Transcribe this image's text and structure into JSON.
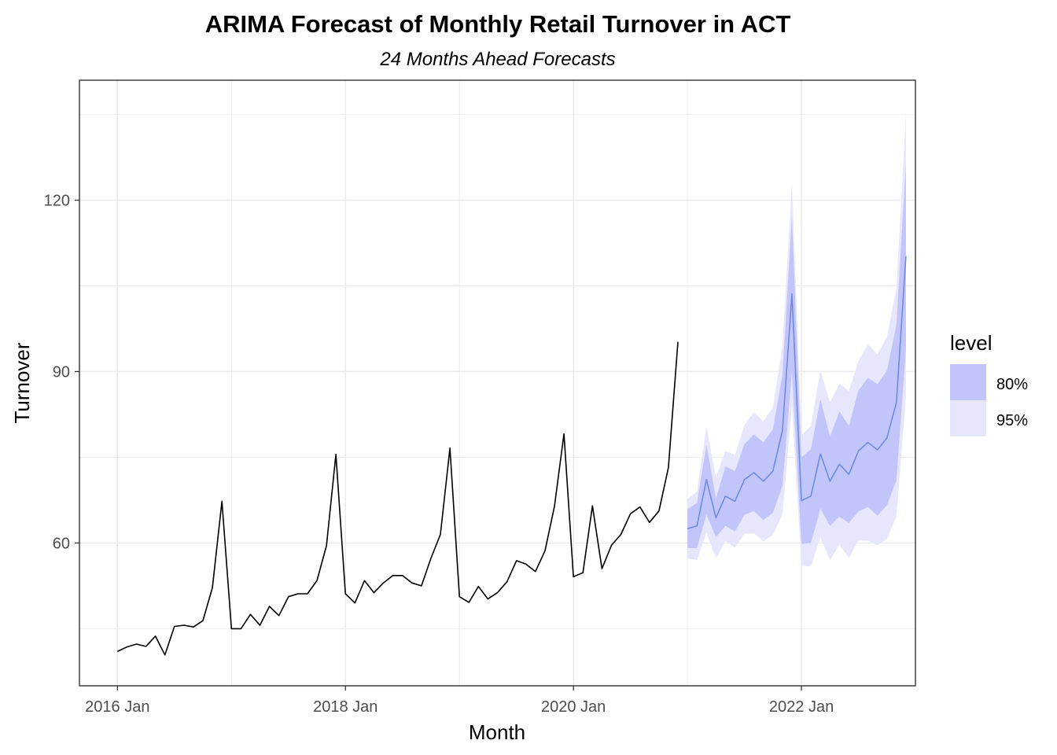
{
  "chart_data": {
    "type": "line",
    "title": "ARIMA Forecast of Monthly Retail Turnover in ACT",
    "subtitle": "24 Months Ahead Forecasts",
    "xlabel": "Month",
    "ylabel": "Turnover",
    "x_start": "2016 Jan",
    "x_ticks": [
      "2016 Jan",
      "2018 Jan",
      "2020 Jan",
      "2022 Jan"
    ],
    "y_ticks": [
      60,
      90,
      120
    ],
    "ylim": [
      35,
      141
    ],
    "xlim_months": [
      -4,
      84
    ],
    "grid": true,
    "legend": {
      "title": "level",
      "position": "right",
      "entries": [
        "80%",
        "95%"
      ]
    },
    "colors": {
      "history": "#000000",
      "forecast": "#6f8be0",
      "band80": "#c2c5fa",
      "band95": "#e6e6fc",
      "grid": "#ebebeb",
      "panel_border": "#333333"
    },
    "series": [
      {
        "name": "history",
        "start_month": "2016 Jan",
        "values": [
          41.0,
          41.8,
          42.3,
          41.9,
          43.7,
          40.4,
          45.4,
          45.6,
          45.3,
          46.4,
          52.2,
          67.3,
          45.0,
          45.0,
          47.5,
          45.6,
          48.9,
          47.3,
          50.6,
          51.1,
          51.1,
          53.4,
          59.5,
          75.5,
          51.1,
          49.5,
          53.4,
          51.3,
          53.0,
          54.3,
          54.3,
          53.0,
          52.5,
          57.3,
          61.5,
          76.6,
          50.6,
          49.6,
          52.4,
          50.2,
          51.3,
          53.2,
          56.9,
          56.3,
          55.0,
          58.6,
          66.4,
          79.1,
          54.1,
          54.8,
          66.5,
          55.5,
          59.6,
          61.5,
          65.1,
          66.3,
          63.6,
          65.6,
          73.2,
          95.2
        ]
      },
      {
        "name": "forecast",
        "start_month": "2021 Jan",
        "mean": [
          62.5,
          63.0,
          71.1,
          64.4,
          68.2,
          67.3,
          71.1,
          72.3,
          70.8,
          72.6,
          79.7,
          103.6,
          67.4,
          68.2,
          75.6,
          70.8,
          73.8,
          72.0,
          76.1,
          77.6,
          76.3,
          78.4,
          84.6,
          110.2
        ],
        "lo80": [
          59.1,
          59.1,
          65.0,
          61.0,
          63.0,
          62.0,
          64.9,
          65.6,
          64.0,
          65.3,
          70.0,
          90.0,
          59.8,
          60.0,
          66.0,
          63.0,
          64.6,
          63.5,
          65.5,
          66.3,
          64.8,
          66.6,
          71.0,
          94.0
        ],
        "hi80": [
          65.9,
          67.0,
          77.2,
          67.8,
          73.4,
          72.6,
          77.3,
          79.0,
          77.6,
          79.9,
          89.4,
          117.2,
          75.0,
          76.4,
          85.2,
          78.6,
          83.0,
          80.5,
          86.7,
          88.9,
          87.8,
          90.2,
          98.2,
          126.4
        ],
        "lo95": [
          57.3,
          57.0,
          61.8,
          57.3,
          60.3,
          59.2,
          61.6,
          61.7,
          60.3,
          61.4,
          65.0,
          84.0,
          56.0,
          55.9,
          61.0,
          57.0,
          59.7,
          57.4,
          60.4,
          60.4,
          59.6,
          60.7,
          64.6,
          85.4
        ],
        "hi95": [
          67.7,
          69.0,
          80.4,
          71.5,
          76.1,
          75.4,
          80.6,
          82.9,
          81.3,
          83.8,
          94.4,
          123.2,
          78.8,
          80.5,
          90.2,
          84.6,
          87.9,
          86.6,
          91.8,
          94.8,
          93.0,
          96.1,
          104.6,
          135.0
        ]
      }
    ]
  }
}
